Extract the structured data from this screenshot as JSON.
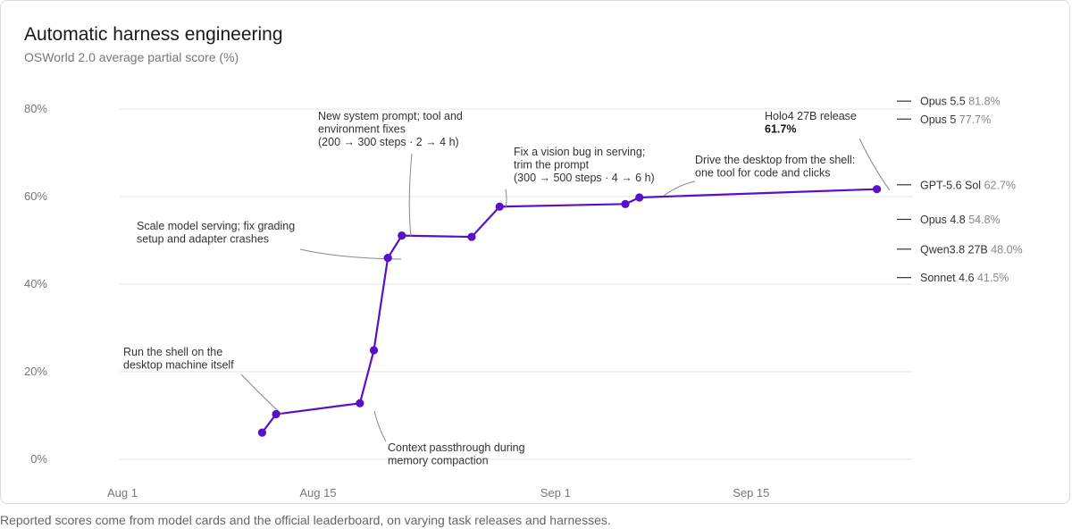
{
  "title": "Automatic harness engineering",
  "subtitle": "OSWorld 2.0 average partial score (%)",
  "footnote": "Reported scores come from model cards and the official leaderboard, on varying task releases and harnesses.",
  "chart_data": {
    "type": "line",
    "title": "Automatic harness engineering",
    "subtitle": "OSWorld 2.0 average partial score (%)",
    "xlabel": "",
    "ylabel": "",
    "ylim": [
      0,
      84
    ],
    "y_ticks": [
      0,
      20,
      40,
      60,
      80
    ],
    "y_tick_labels": [
      "0%",
      "20%",
      "40%",
      "60%",
      "80%"
    ],
    "x_ticks": [
      "Aug 1",
      "Aug 15",
      "Sep 1",
      "Sep 15"
    ],
    "grid": true,
    "color": "#5a0fc8",
    "series": [
      {
        "x": [
          "Aug 11",
          "Aug 12",
          "Aug 18",
          "Aug 19",
          "Aug 20",
          "Aug 21",
          "Aug 26",
          "Aug 28",
          "Sep 6",
          "Sep 7",
          "Sep 24"
        ],
        "values": [
          6.1,
          10.3,
          12.8,
          24.9,
          46.0,
          51.1,
          50.8,
          57.7,
          58.3,
          59.8,
          61.7
        ]
      }
    ],
    "annotations": [
      {
        "lines": [
          "Run the shell on the",
          "desktop machine itself"
        ]
      },
      {
        "lines": [
          "Context passthrough during",
          "memory compaction"
        ]
      },
      {
        "lines": [
          "Scale model serving; fix grading",
          "setup and adapter crashes"
        ]
      },
      {
        "lines": [
          "New system prompt; tool and",
          "environment fixes",
          "(200 → 300 steps · 2 → 4 h)"
        ]
      },
      {
        "lines": [
          "Fix a vision bug in serving;",
          "trim the prompt",
          "(300 → 500 steps · 4 → 6 h)"
        ]
      },
      {
        "lines": [
          "Drive the desktop from the shell:",
          "one tool for code and clicks"
        ]
      },
      {
        "lines": [
          "Holo4 27B release"
        ],
        "value": "61.7%"
      }
    ],
    "reference_models": [
      {
        "name": "Opus 5.5",
        "value": 81.8,
        "label": "81.8%"
      },
      {
        "name": "Opus 5",
        "value": 77.7,
        "label": "77.7%"
      },
      {
        "name": "GPT-5.6 Sol",
        "value": 62.7,
        "label": "62.7%"
      },
      {
        "name": "Opus 4.8",
        "value": 54.8,
        "label": "54.8%"
      },
      {
        "name": "Qwen3.8 27B",
        "value": 48.0,
        "label": "48.0%"
      },
      {
        "name": "Sonnet 4.6",
        "value": 41.5,
        "label": "41.5%"
      }
    ]
  }
}
